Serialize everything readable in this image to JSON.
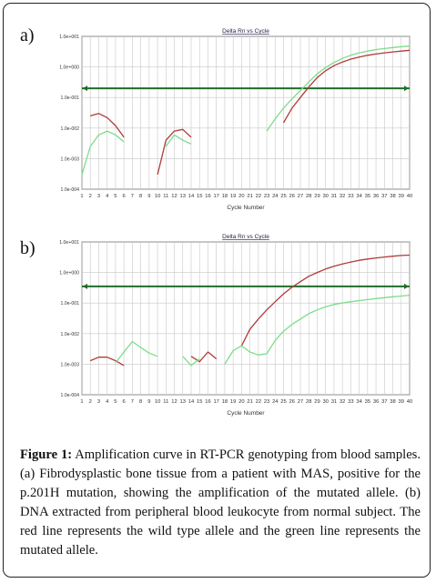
{
  "panel_labels": [
    "a)",
    "b)"
  ],
  "caption": {
    "label": "Figure 1:",
    "text": "Amplification curve in RT-PCR genotyping from blood samples. (a) Fibrodysplastic bone tissue from a patient with MAS, positive for the p.201H mutation, showing the amplification of the mutated allele. (b) DNA extracted from peripheral blood leukocyte from normal subject. The red line represents the wild type allele and the green line represents the mutated allele."
  },
  "colors": {
    "wild_type": "#b03a3a",
    "mutated": "#7ddc8a",
    "threshold": "#1e6e2a",
    "grid": "#c8c8c8"
  },
  "chart_data": [
    {
      "type": "line",
      "title": "Delta Rn vs Cycle",
      "xlabel": "Cycle Number",
      "ylabel": "",
      "log_y": true,
      "ylim": [
        0.0001,
        10
      ],
      "xlim": [
        1,
        40
      ],
      "y_ticks": [
        "1.0e+001",
        "1.0e+000",
        "1.0e-001",
        "1.0e-002",
        "1.0e-003",
        "1.0e-004"
      ],
      "x_ticks": [
        1,
        2,
        3,
        4,
        5,
        6,
        7,
        8,
        9,
        10,
        11,
        12,
        13,
        14,
        15,
        16,
        17,
        18,
        19,
        20,
        21,
        22,
        23,
        24,
        25,
        26,
        27,
        28,
        29,
        30,
        31,
        32,
        33,
        34,
        35,
        36,
        37,
        38,
        39,
        40
      ],
      "threshold": 0.2,
      "series": [
        {
          "color": "red",
          "segments": [
            [
              [
                2,
                0.025
              ],
              [
                3,
                0.03
              ],
              [
                4,
                0.022
              ],
              [
                5,
                0.012
              ],
              [
                6,
                0.005
              ]
            ],
            [
              [
                10,
                0.0003
              ],
              [
                11,
                0.004
              ],
              [
                12,
                0.008
              ],
              [
                13,
                0.009
              ],
              [
                14,
                0.005
              ]
            ],
            [
              [
                25,
                0.015
              ],
              [
                26,
                0.045
              ],
              [
                27,
                0.1
              ],
              [
                28,
                0.22
              ],
              [
                29,
                0.45
              ],
              [
                30,
                0.75
              ],
              [
                31,
                1.1
              ],
              [
                32,
                1.45
              ],
              [
                33,
                1.8
              ],
              [
                34,
                2.1
              ],
              [
                35,
                2.4
              ],
              [
                36,
                2.65
              ],
              [
                37,
                2.9
              ],
              [
                38,
                3.1
              ],
              [
                39,
                3.3
              ],
              [
                40,
                3.5
              ]
            ]
          ]
        },
        {
          "color": "green",
          "segments": [
            [
              [
                1,
                0.0003
              ],
              [
                2,
                0.0025
              ],
              [
                3,
                0.006
              ],
              [
                4,
                0.008
              ],
              [
                5,
                0.006
              ],
              [
                6,
                0.0035
              ]
            ],
            [
              [
                11,
                0.0025
              ],
              [
                12,
                0.006
              ],
              [
                13,
                0.004
              ],
              [
                14,
                0.003
              ]
            ],
            [
              [
                23,
                0.008
              ],
              [
                24,
                0.02
              ],
              [
                25,
                0.045
              ],
              [
                26,
                0.09
              ],
              [
                27,
                0.17
              ],
              [
                28,
                0.32
              ],
              [
                29,
                0.6
              ],
              [
                30,
                0.95
              ],
              [
                31,
                1.4
              ],
              [
                32,
                1.9
              ],
              [
                33,
                2.4
              ],
              [
                34,
                2.9
              ],
              [
                35,
                3.3
              ],
              [
                36,
                3.7
              ],
              [
                37,
                4.0
              ],
              [
                38,
                4.3
              ],
              [
                39,
                4.6
              ],
              [
                40,
                4.8
              ]
            ]
          ]
        }
      ]
    },
    {
      "type": "line",
      "title": "Delta Rn vs Cycle",
      "xlabel": "Cycle Number",
      "ylabel": "",
      "log_y": true,
      "ylim": [
        0.0001,
        10
      ],
      "xlim": [
        1,
        40
      ],
      "y_ticks": [
        "1.0e+001",
        "1.0e+000",
        "1.0e-001",
        "1.0e-002",
        "1.0e-003",
        "1.0e-004"
      ],
      "x_ticks": [
        1,
        2,
        3,
        4,
        5,
        6,
        7,
        8,
        9,
        10,
        11,
        12,
        13,
        14,
        15,
        16,
        17,
        18,
        19,
        20,
        21,
        22,
        23,
        24,
        25,
        26,
        27,
        28,
        29,
        30,
        31,
        32,
        33,
        34,
        35,
        36,
        37,
        38,
        39,
        40
      ],
      "threshold": 0.35,
      "series": [
        {
          "color": "red",
          "segments": [
            [
              [
                2,
                0.0013
              ],
              [
                3,
                0.0017
              ],
              [
                4,
                0.0017
              ],
              [
                5,
                0.0013
              ],
              [
                6,
                0.0009
              ]
            ],
            [
              [
                14,
                0.0018
              ],
              [
                15,
                0.0012
              ],
              [
                16,
                0.0025
              ],
              [
                17,
                0.0015
              ]
            ],
            [
              [
                20,
                0.004
              ],
              [
                21,
                0.014
              ],
              [
                22,
                0.03
              ],
              [
                23,
                0.06
              ],
              [
                24,
                0.11
              ],
              [
                25,
                0.2
              ],
              [
                26,
                0.33
              ],
              [
                27,
                0.5
              ],
              [
                28,
                0.75
              ],
              [
                29,
                1.0
              ],
              [
                30,
                1.3
              ],
              [
                31,
                1.6
              ],
              [
                32,
                1.9
              ],
              [
                33,
                2.2
              ],
              [
                34,
                2.5
              ],
              [
                35,
                2.75
              ],
              [
                36,
                3.0
              ],
              [
                37,
                3.2
              ],
              [
                38,
                3.4
              ],
              [
                39,
                3.6
              ],
              [
                40,
                3.7
              ]
            ]
          ]
        },
        {
          "color": "green",
          "segments": [
            [
              [
                5,
                0.0011
              ],
              [
                6,
                0.0025
              ],
              [
                7,
                0.0055
              ],
              [
                8,
                0.0035
              ],
              [
                9,
                0.0023
              ],
              [
                10,
                0.0018
              ]
            ],
            [
              [
                13,
                0.0018
              ],
              [
                14,
                0.0009
              ],
              [
                15,
                0.0015
              ]
            ],
            [
              [
                18,
                0.001
              ],
              [
                19,
                0.0028
              ],
              [
                20,
                0.004
              ],
              [
                21,
                0.0025
              ],
              [
                22,
                0.002
              ],
              [
                23,
                0.0022
              ],
              [
                24,
                0.006
              ],
              [
                25,
                0.012
              ],
              [
                26,
                0.02
              ],
              [
                27,
                0.03
              ],
              [
                28,
                0.045
              ],
              [
                29,
                0.06
              ],
              [
                30,
                0.075
              ],
              [
                31,
                0.09
              ],
              [
                32,
                0.1
              ],
              [
                33,
                0.11
              ],
              [
                34,
                0.12
              ],
              [
                35,
                0.13
              ],
              [
                36,
                0.14
              ],
              [
                37,
                0.15
              ],
              [
                38,
                0.16
              ],
              [
                39,
                0.17
              ],
              [
                40,
                0.18
              ]
            ]
          ]
        }
      ]
    }
  ]
}
